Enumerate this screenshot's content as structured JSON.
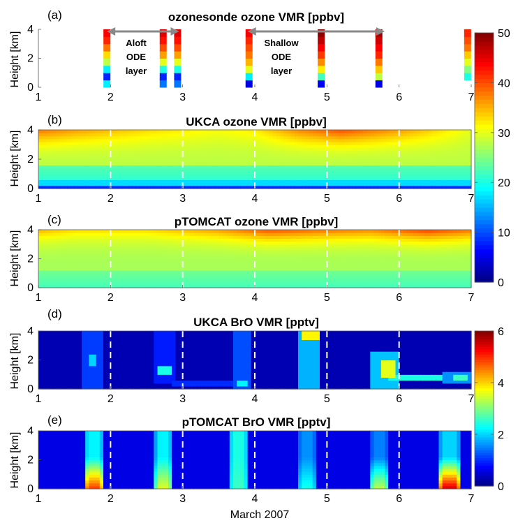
{
  "chart_data": [
    {
      "id": "a",
      "type": "heatmap",
      "panel_label": "(a)",
      "title": "ozonesonde ozone VMR [ppbv]",
      "ylabel": "Height [km]",
      "x_ticks": [
        "1",
        "2",
        "3",
        "4",
        "5",
        "6",
        "7"
      ],
      "y_ticks": [
        "0",
        "2",
        "4"
      ],
      "xlim": [
        1,
        7
      ],
      "ylim": [
        0,
        4
      ],
      "colorbar": "ozone",
      "profiles": [
        {
          "x": 1.95,
          "values": [
            18,
            8,
            18,
            28,
            33,
            38,
            42,
            44
          ]
        },
        {
          "x": 2.73,
          "values": [
            12,
            8,
            20,
            30,
            36,
            40,
            43,
            45
          ]
        },
        {
          "x": 2.93,
          "values": [
            12,
            8,
            20,
            30,
            36,
            40,
            43,
            45
          ]
        },
        {
          "x": 3.92,
          "values": [
            5,
            18,
            30,
            35,
            38,
            40,
            42,
            44
          ]
        },
        {
          "x": 4.92,
          "values": [
            6,
            22,
            32,
            37,
            41,
            44,
            47,
            49
          ]
        },
        {
          "x": 5.72,
          "values": [
            5,
            28,
            34,
            38,
            42,
            44,
            46,
            48
          ]
        },
        {
          "x": 6.95,
          "values": [
            20,
            25,
            30,
            34,
            38,
            40,
            42
          ]
        }
      ],
      "annotations": [
        {
          "text": [
            "Aloft",
            "ODE",
            "layer"
          ],
          "arrow_from": 1.95,
          "arrow_to": 2.95
        },
        {
          "text": [
            "Shallow",
            "ODE",
            "layer"
          ],
          "arrow_from": 3.9,
          "arrow_to": 5.8
        }
      ]
    },
    {
      "id": "b",
      "type": "heatmap",
      "panel_label": "(b)",
      "title": "UKCA ozone VMR [ppbv]",
      "ylabel": "Height [km]",
      "x_ticks": [
        "1",
        "2",
        "3",
        "4",
        "5",
        "6",
        "7"
      ],
      "y_ticks": [
        "0",
        "2",
        "4"
      ],
      "xlim": [
        1,
        7
      ],
      "ylim": [
        0,
        4
      ],
      "colorbar": "ozone",
      "dashed_lines_x": [
        2,
        3,
        4,
        5,
        6
      ],
      "surface_value": 8,
      "lower_value": 21,
      "upper_value": 28,
      "top_value_by_day": [
        38,
        36,
        33,
        31,
        32,
        37,
        40,
        35,
        30
      ],
      "top_x": [
        1,
        1.5,
        2.5,
        3.5,
        4,
        4.6,
        5.2,
        6.2,
        7
      ]
    },
    {
      "id": "c",
      "type": "heatmap",
      "panel_label": "(c)",
      "title": "pTOMCAT ozone VMR [ppbv]",
      "ylabel": "Height [km]",
      "x_ticks": [
        "1",
        "2",
        "3",
        "4",
        "5",
        "6",
        "7"
      ],
      "y_ticks": [
        "0",
        "2",
        "4"
      ],
      "xlim": [
        1,
        7
      ],
      "ylim": [
        0,
        4
      ],
      "colorbar": "ozone",
      "dashed_lines_x": [
        2,
        3,
        4,
        5,
        6
      ],
      "surface_value": 22,
      "mid_value": 27,
      "top_value_by_day": [
        35,
        33,
        33,
        36,
        40,
        38,
        37,
        41,
        38
      ],
      "top_x": [
        1,
        1.5,
        2.5,
        3.5,
        4.2,
        5,
        5.6,
        6.4,
        7
      ]
    },
    {
      "id": "d",
      "type": "heatmap",
      "panel_label": "(d)",
      "title": "UKCA BrO VMR [pptv]",
      "ylabel": "Height [km]",
      "x_ticks": [
        "1",
        "2",
        "3",
        "4",
        "5",
        "6",
        "7"
      ],
      "y_ticks": [
        "0",
        "2",
        "4"
      ],
      "xlim": [
        1,
        7
      ],
      "ylim": [
        0,
        4
      ],
      "colorbar": "bro",
      "dashed_lines_x": [
        2,
        3,
        4,
        5,
        6
      ],
      "background": 0.3,
      "blobs": [
        {
          "x0": 1.62,
          "x1": 1.9,
          "y0": 0,
          "y1": 4,
          "value": 1.1
        },
        {
          "x0": 1.68,
          "x1": 1.82,
          "y0": 1.6,
          "y1": 2.4,
          "value": 2.0
        },
        {
          "x0": 2.62,
          "x1": 2.88,
          "y0": 0.4,
          "y1": 4,
          "value": 0.9
        },
        {
          "x0": 2.65,
          "x1": 2.85,
          "y0": 1.0,
          "y1": 1.6,
          "value": 2.4
        },
        {
          "x0": 2.85,
          "x1": 3.9,
          "y0": 0.2,
          "y1": 0.5,
          "value": 1.0
        },
        {
          "x0": 3.7,
          "x1": 3.95,
          "y0": 0,
          "y1": 4,
          "value": 1.2
        },
        {
          "x0": 3.75,
          "x1": 3.9,
          "y0": 0.2,
          "y1": 0.6,
          "value": 2.2
        },
        {
          "x0": 4.62,
          "x1": 4.92,
          "y0": 0,
          "y1": 4,
          "value": 1.8
        },
        {
          "x0": 4.66,
          "x1": 4.88,
          "y0": 3.4,
          "y1": 4,
          "value": 3.8
        },
        {
          "x0": 5.62,
          "x1": 6.0,
          "y0": 0,
          "y1": 2.6,
          "value": 1.9
        },
        {
          "x0": 5.75,
          "x1": 5.95,
          "y0": 0.8,
          "y1": 2.0,
          "value": 3.6
        },
        {
          "x0": 5.85,
          "x1": 6.6,
          "y0": 0.6,
          "y1": 0.9,
          "value": 2.4
        },
        {
          "x0": 6.6,
          "x1": 7.0,
          "y0": 0.4,
          "y1": 1.2,
          "value": 1.6
        },
        {
          "x0": 6.75,
          "x1": 6.95,
          "y0": 0.6,
          "y1": 1.0,
          "value": 2.6
        }
      ]
    },
    {
      "id": "e",
      "type": "heatmap",
      "panel_label": "(e)",
      "title": "pTOMCAT BrO VMR [pptv]",
      "ylabel": "Height [km]",
      "x_ticks": [
        "1",
        "2",
        "3",
        "4",
        "5",
        "6",
        "7"
      ],
      "y_ticks": [
        "0",
        "2",
        "4"
      ],
      "xlim": [
        1,
        7
      ],
      "ylim": [
        0,
        4
      ],
      "colorbar": "bro",
      "dashed_lines_x": [
        2,
        3,
        4,
        5,
        6
      ],
      "background": 0.6,
      "columns": [
        {
          "x0": 1.63,
          "x1": 1.9,
          "surface": 5.0,
          "top": 2.2
        },
        {
          "x0": 2.62,
          "x1": 2.85,
          "surface": 3.6,
          "top": 2.2
        },
        {
          "x0": 3.65,
          "x1": 3.9,
          "surface": 2.6,
          "top": 2.4
        },
        {
          "x0": 4.6,
          "x1": 4.85,
          "surface": 2.4,
          "top": 1.6
        },
        {
          "x0": 5.6,
          "x1": 5.85,
          "surface": 3.4,
          "top": 1.5
        },
        {
          "x0": 6.55,
          "x1": 6.85,
          "surface": 5.6,
          "top": 2.0
        }
      ]
    }
  ],
  "colorbars": {
    "ozone": {
      "range": [
        0,
        50
      ],
      "ticks": [
        "0",
        "10",
        "20",
        "30",
        "40",
        "50"
      ]
    },
    "bro": {
      "range": [
        0,
        6
      ],
      "ticks": [
        "0",
        "2",
        "4",
        "6"
      ]
    }
  },
  "xlabel": "March 2007"
}
